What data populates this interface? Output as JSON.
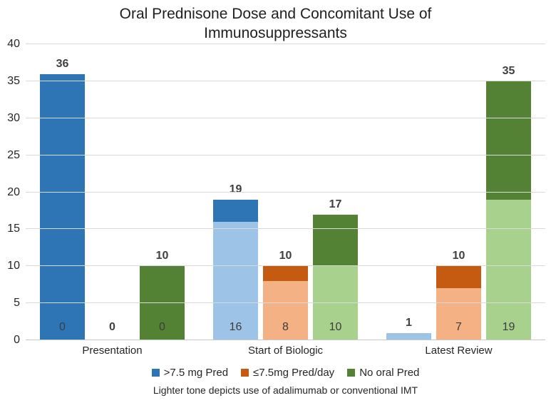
{
  "header": {
    "title_line1": "Oral Prednisone Dose and Concomitant Use of",
    "title_line2": "Immunosuppressants"
  },
  "chart_data": {
    "type": "bar",
    "stacked": true,
    "title": "Oral Prednisone Dose and Concomitant Use of Immunosuppressants",
    "categories": [
      "Presentation",
      "Start of Biologic",
      "Latest Review"
    ],
    "series": [
      {
        "name": ">7.5 mg Pred",
        "color": "#2E75B6",
        "light_color": "#9DC3E6",
        "totals": [
          36,
          19,
          1
        ],
        "light_values": [
          0,
          16,
          1
        ],
        "total_labels": [
          "36",
          "19",
          "1"
        ],
        "inside_labels": [
          "0",
          "16",
          ""
        ]
      },
      {
        "name": "≤7.5mg Pred/day",
        "color": "#C55A11",
        "light_color": "#F4B183",
        "totals": [
          0,
          10,
          10
        ],
        "light_values": [
          0,
          8,
          7
        ],
        "total_labels": [
          "0",
          "10",
          "10"
        ],
        "inside_labels": [
          "",
          "8",
          "7"
        ]
      },
      {
        "name": "No oral Pred",
        "color": "#548235",
        "light_color": "#A9D18E",
        "totals": [
          10,
          17,
          35
        ],
        "light_values": [
          0,
          10,
          19
        ],
        "total_labels": [
          "10",
          "17",
          "35"
        ],
        "inside_labels": [
          "0",
          "10",
          "19"
        ]
      }
    ],
    "ylim": [
      0,
      40
    ],
    "ytick_step": 5,
    "grid": true,
    "legend_position": "bottom",
    "footnote": "Lighter tone depicts use of adalimumab or conventional IMT",
    "note": "Lighter tone segments (bottom of each stack) depict use of adalimumab or conventional IMT"
  },
  "colors": {
    "gridline": "#D9D9D9",
    "text": "#262626",
    "data_label": "#404040"
  }
}
